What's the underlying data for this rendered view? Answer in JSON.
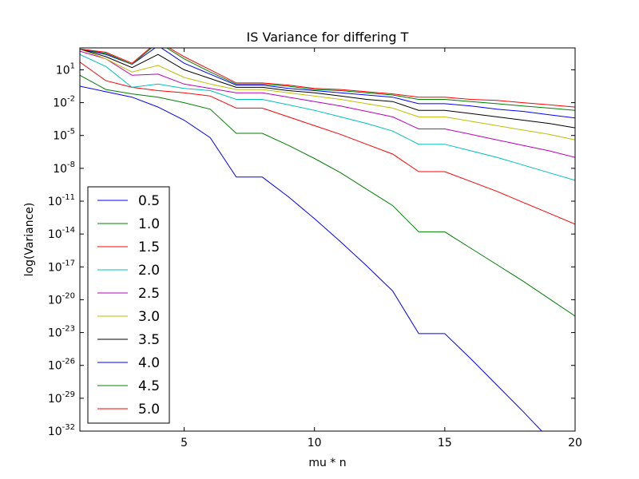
{
  "chart_data": {
    "type": "line",
    "title": "IS Variance for differing T",
    "xlabel": "mu * n",
    "ylabel": "log(Variance)",
    "xlim": [
      1,
      20
    ],
    "ylim_log10": [
      -32,
      3
    ],
    "yscale": "log",
    "grid": false,
    "legend_position": "lower-left",
    "x_ticks": [
      {
        "value": 5,
        "label": "5"
      },
      {
        "value": 10,
        "label": "10"
      },
      {
        "value": 15,
        "label": "15"
      },
      {
        "value": 20,
        "label": "20"
      }
    ],
    "y_ticks": [
      {
        "exp": 1,
        "base": "10",
        "sup": "1"
      },
      {
        "exp": -2,
        "base": "10",
        "sup": "-2"
      },
      {
        "exp": -5,
        "base": "10",
        "sup": "-5"
      },
      {
        "exp": -8,
        "base": "10",
        "sup": "-8"
      },
      {
        "exp": -11,
        "base": "10",
        "sup": "-11"
      },
      {
        "exp": -14,
        "base": "10",
        "sup": "-14"
      },
      {
        "exp": -17,
        "base": "10",
        "sup": "-17"
      },
      {
        "exp": -20,
        "base": "10",
        "sup": "-20"
      },
      {
        "exp": -23,
        "base": "10",
        "sup": "-23"
      },
      {
        "exp": -26,
        "base": "10",
        "sup": "-26"
      },
      {
        "exp": -29,
        "base": "10",
        "sup": "-29"
      },
      {
        "exp": -32,
        "base": "10",
        "sup": "-32"
      }
    ],
    "x": [
      1,
      2,
      3,
      4,
      5,
      6,
      7,
      8,
      9,
      10,
      11,
      12,
      13,
      14,
      15,
      16,
      17,
      18,
      19,
      20
    ],
    "series": [
      {
        "name": "0.5",
        "color": "#0000ff",
        "log10_values": [
          -0.5,
          -1.0,
          -1.5,
          -2.4,
          -3.6,
          -5.2,
          -8.8,
          -8.8,
          -10.6,
          -12.6,
          -14.7,
          -16.9,
          -19.2,
          -23.1,
          -23.1,
          -25.4,
          -27.8,
          -30.2,
          -32.7,
          -35.1
        ]
      },
      {
        "name": "1.0",
        "color": "#008000",
        "log10_values": [
          0.5,
          -0.8,
          -1.2,
          -1.5,
          -2.0,
          -2.6,
          -4.8,
          -4.8,
          -5.9,
          -7.1,
          -8.4,
          -9.9,
          -11.4,
          -13.8,
          -13.8,
          -15.3,
          -16.8,
          -18.3,
          -19.9,
          -21.5
        ]
      },
      {
        "name": "1.5",
        "color": "#ff0000",
        "log10_values": [
          1.7,
          0.0,
          -0.6,
          -0.9,
          -1.1,
          -1.4,
          -2.5,
          -2.5,
          -3.3,
          -4.1,
          -4.9,
          -5.8,
          -6.7,
          -8.3,
          -8.3,
          -9.2,
          -10.1,
          -11.1,
          -12.1,
          -13.1
        ]
      },
      {
        "name": "2.0",
        "color": "#00bfbf",
        "log10_values": [
          2.4,
          1.3,
          -0.6,
          -0.3,
          -0.7,
          -0.9,
          -1.7,
          -1.7,
          -2.2,
          -2.7,
          -3.3,
          -3.9,
          -4.6,
          -5.8,
          -5.8,
          -6.4,
          -7.0,
          -7.7,
          -8.4,
          -9.1
        ]
      },
      {
        "name": "2.5",
        "color": "#bf00bf",
        "log10_values": [
          2.7,
          2.0,
          0.5,
          0.6,
          -0.3,
          -0.7,
          -1.1,
          -1.1,
          -1.5,
          -1.9,
          -2.3,
          -2.8,
          -3.3,
          -4.4,
          -4.4,
          -4.9,
          -5.4,
          -5.9,
          -6.4,
          -7.0
        ]
      },
      {
        "name": "3.0",
        "color": "#bfbf00",
        "log10_values": [
          2.9,
          2.0,
          0.8,
          1.4,
          0.3,
          -0.3,
          -0.8,
          -0.8,
          -1.1,
          -1.4,
          -1.7,
          -2.1,
          -2.5,
          -3.3,
          -3.3,
          -3.7,
          -4.1,
          -4.5,
          -4.9,
          -5.4
        ]
      },
      {
        "name": "3.5",
        "color": "#000000",
        "log10_values": [
          2.9,
          2.2,
          1.2,
          2.4,
          1.0,
          0.2,
          -0.6,
          -0.6,
          -0.9,
          -1.1,
          -1.4,
          -1.7,
          -1.9,
          -2.7,
          -2.7,
          -3.0,
          -3.3,
          -3.6,
          -3.9,
          -4.3
        ]
      },
      {
        "name": "4.0",
        "color": "#0000ff",
        "log10_values": [
          2.9,
          2.4,
          1.5,
          3.2,
          1.6,
          0.6,
          -0.4,
          -0.4,
          -0.7,
          -0.9,
          -1.1,
          -1.3,
          -1.5,
          -2.1,
          -2.1,
          -2.3,
          -2.6,
          -2.8,
          -3.1,
          -3.4
        ]
      },
      {
        "name": "4.5",
        "color": "#008000",
        "log10_values": [
          2.9,
          2.5,
          1.5,
          3.5,
          2.0,
          0.8,
          -0.3,
          -0.3,
          -0.5,
          -0.8,
          -0.9,
          -1.1,
          -1.3,
          -1.7,
          -1.7,
          -1.9,
          -2.1,
          -2.3,
          -2.5,
          -2.7
        ]
      },
      {
        "name": "5.0",
        "color": "#ff0000",
        "log10_values": [
          2.9,
          2.6,
          1.6,
          3.6,
          2.2,
          1.0,
          -0.2,
          -0.2,
          -0.4,
          -0.7,
          -0.8,
          -1.0,
          -1.2,
          -1.5,
          -1.5,
          -1.7,
          -1.8,
          -2.0,
          -2.2,
          -2.4
        ]
      }
    ]
  }
}
